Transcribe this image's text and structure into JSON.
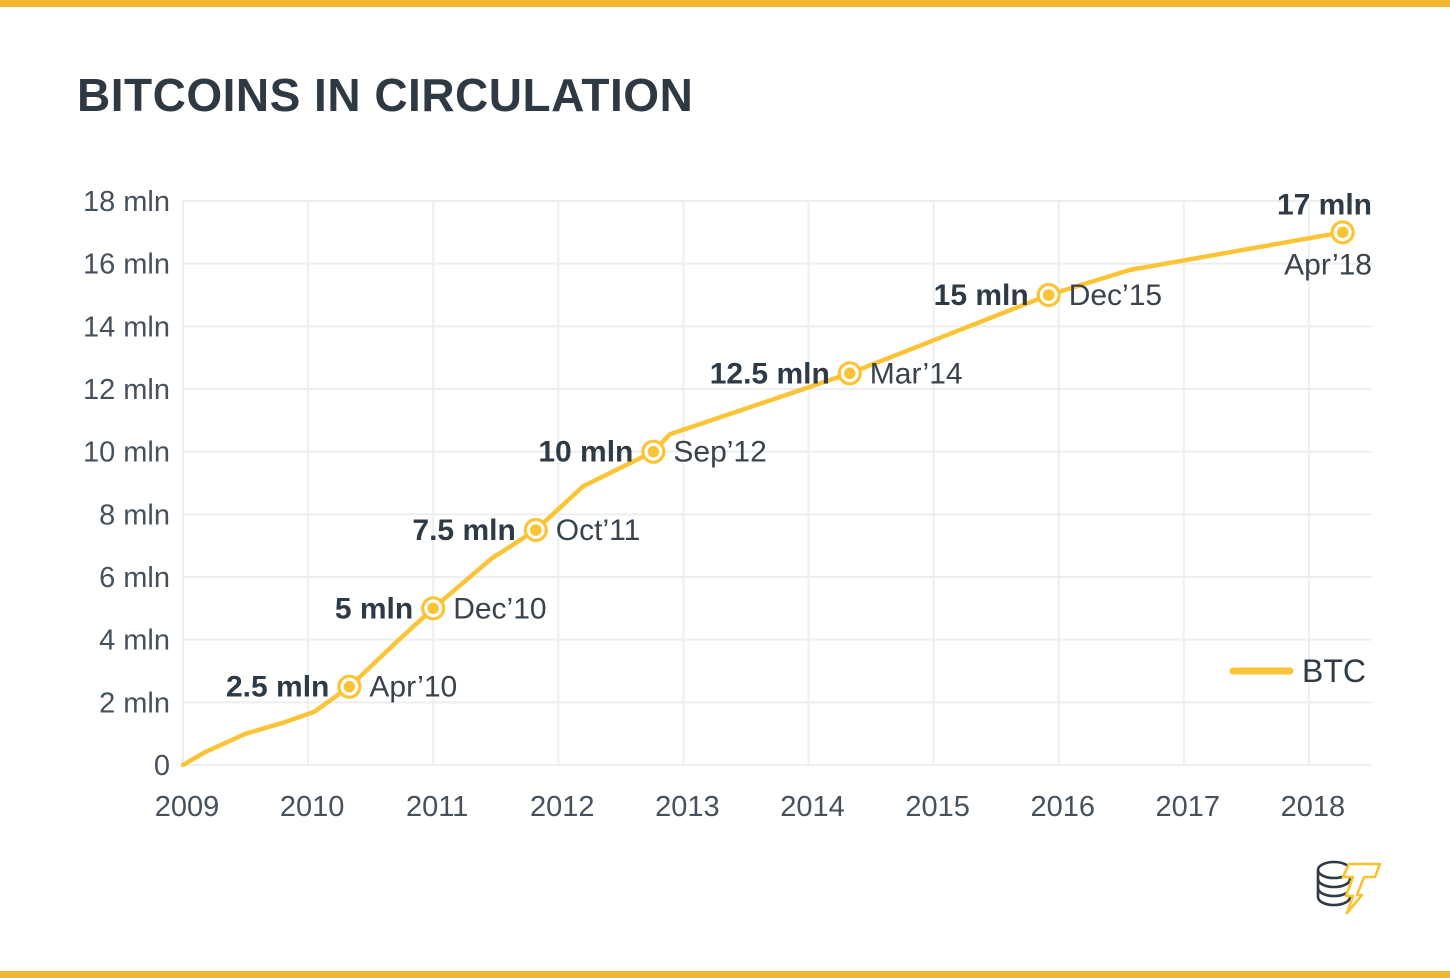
{
  "page": {
    "title": "BITCOINS IN CIRCULATION"
  },
  "colors": {
    "accent_bar": "#F2B632",
    "line": "#FBC437",
    "marker": "#FBC437",
    "grid": "#ECEEF0",
    "text_dark": "#2E3A45",
    "text_tick": "#46515C"
  },
  "brand": {
    "logo_icon": "coin-stack-lightning-logo"
  },
  "chart_data": {
    "type": "line",
    "title": "BITCOINS IN CIRCULATION",
    "xlabel": "",
    "ylabel": "",
    "xlim": [
      2009,
      2018.5
    ],
    "ylim": [
      0,
      18
    ],
    "grid": true,
    "legend_position": "right-middle",
    "x_ticks": [
      {
        "value": 2009,
        "label": "2009"
      },
      {
        "value": 2010,
        "label": "2010"
      },
      {
        "value": 2011,
        "label": "2011"
      },
      {
        "value": 2012,
        "label": "2012"
      },
      {
        "value": 2013,
        "label": "2013"
      },
      {
        "value": 2014,
        "label": "2014"
      },
      {
        "value": 2015,
        "label": "2015"
      },
      {
        "value": 2016,
        "label": "2016"
      },
      {
        "value": 2017,
        "label": "2017"
      },
      {
        "value": 2018,
        "label": "2018"
      }
    ],
    "y_ticks": [
      {
        "value": 0,
        "label": "0"
      },
      {
        "value": 2,
        "label": "2 mln"
      },
      {
        "value": 4,
        "label": "4 mln"
      },
      {
        "value": 6,
        "label": "6 mln"
      },
      {
        "value": 8,
        "label": "8 mln"
      },
      {
        "value": 10,
        "label": "10 mln"
      },
      {
        "value": 12,
        "label": "12 mln"
      },
      {
        "value": 14,
        "label": "14 mln"
      },
      {
        "value": 16,
        "label": "16 mln"
      },
      {
        "value": 18,
        "label": "18 mln"
      }
    ],
    "series": [
      {
        "name": "BTC",
        "points": [
          [
            2009.0,
            0
          ],
          [
            2009.17,
            0.4
          ],
          [
            2009.5,
            1.0
          ],
          [
            2009.8,
            1.35
          ],
          [
            2010.05,
            1.7
          ],
          [
            2010.33,
            2.5
          ],
          [
            2010.7,
            3.9
          ],
          [
            2011.0,
            5.0
          ],
          [
            2011.47,
            6.6
          ],
          [
            2011.82,
            7.5
          ],
          [
            2012.2,
            8.9
          ],
          [
            2012.76,
            10.0
          ],
          [
            2012.89,
            10.55
          ],
          [
            2014.33,
            12.5
          ],
          [
            2015.92,
            15.0
          ],
          [
            2016.57,
            15.8
          ],
          [
            2018.27,
            17.0
          ]
        ]
      }
    ],
    "annotated_points": [
      {
        "x": 2010.33,
        "y": 2.5,
        "value_label": "2.5 mln",
        "date_label": "Apr’10",
        "layout": "side"
      },
      {
        "x": 2011.0,
        "y": 5.0,
        "value_label": "5 mln",
        "date_label": "Dec’10",
        "layout": "side"
      },
      {
        "x": 2011.82,
        "y": 7.5,
        "value_label": "7.5 mln",
        "date_label": "Oct’11",
        "layout": "side"
      },
      {
        "x": 2012.76,
        "y": 10.0,
        "value_label": "10 mln",
        "date_label": "Sep’12",
        "layout": "side"
      },
      {
        "x": 2014.33,
        "y": 12.5,
        "value_label": "12.5 mln",
        "date_label": "Mar’14",
        "layout": "side"
      },
      {
        "x": 2015.92,
        "y": 15.0,
        "value_label": "15 mln",
        "date_label": "Dec’15",
        "layout": "side"
      },
      {
        "x": 2018.27,
        "y": 17.0,
        "value_label": "17 mln",
        "date_label": "Apr’18",
        "layout": "stacked"
      }
    ],
    "legend": {
      "label": "BTC"
    }
  }
}
